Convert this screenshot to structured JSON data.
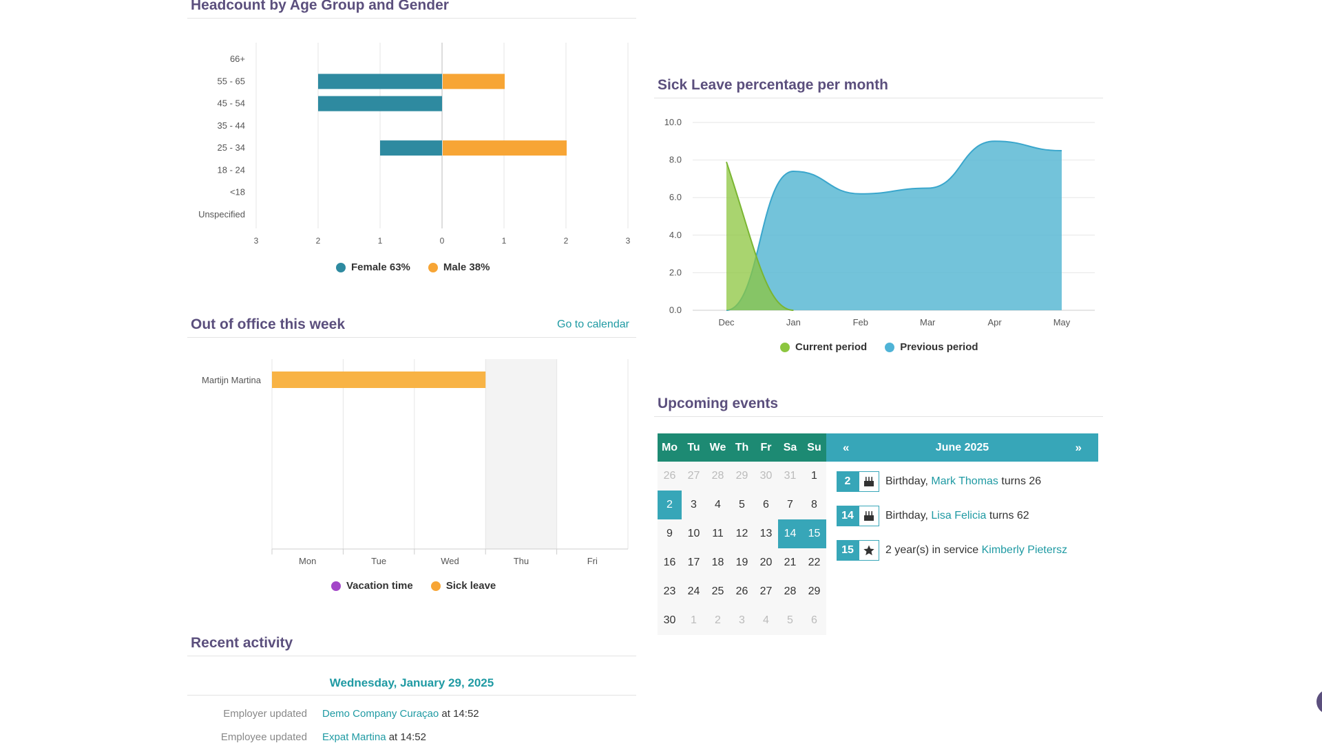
{
  "headcount": {
    "title": "Headcount by Age Group and Gender",
    "legend": {
      "female": "Female 63%",
      "male": "Male 38%"
    },
    "colors": {
      "female": "#2e8aa0",
      "male": "#f7a535"
    }
  },
  "sick_leave": {
    "title": "Sick Leave percentage per month",
    "legend": {
      "current": "Current period",
      "previous": "Previous period"
    },
    "colors": {
      "current": "#8cc63f",
      "previous": "#5bb8d4"
    }
  },
  "out_of_office": {
    "title": "Out of office this week",
    "calendar_link": "Go to calendar",
    "legend": {
      "vacation": "Vacation time",
      "sick": "Sick leave"
    },
    "colors": {
      "vacation": "#a346c8",
      "sick": "#f7a535"
    }
  },
  "events": {
    "title": "Upcoming events",
    "calendar": {
      "month": "June 2025",
      "prev": "«",
      "next": "»",
      "weekdays": [
        "Mo",
        "Tu",
        "We",
        "Th",
        "Fr",
        "Sa",
        "Su"
      ],
      "weeks": [
        [
          "26",
          "27",
          "28",
          "29",
          "30",
          "31",
          "1"
        ],
        [
          "2",
          "3",
          "4",
          "5",
          "6",
          "7",
          "8"
        ],
        [
          "9",
          "10",
          "11",
          "12",
          "13",
          "14",
          "15"
        ],
        [
          "16",
          "17",
          "18",
          "19",
          "20",
          "21",
          "22"
        ],
        [
          "23",
          "24",
          "25",
          "26",
          "27",
          "28",
          "29"
        ],
        [
          "30",
          "1",
          "2",
          "3",
          "4",
          "5",
          "6"
        ]
      ]
    },
    "items": [
      {
        "day": "2",
        "icon": "cake-icon",
        "prefix": "Birthday, ",
        "name": "Mark Thomas",
        "suffix": " turns 26"
      },
      {
        "day": "14",
        "icon": "cake-icon",
        "prefix": "Birthday, ",
        "name": "Lisa Felicia",
        "suffix": " turns 62"
      },
      {
        "day": "15",
        "icon": "star-icon",
        "prefix": "2 year(s) in service ",
        "name": "Kimberly Pietersz",
        "suffix": ""
      }
    ]
  },
  "activity": {
    "title": "Recent activity",
    "date": "Wednesday, January 29, 2025",
    "rows": [
      {
        "label": "Employer updated",
        "link": "Demo Company Curaçao",
        "suffix": " at 14:52"
      },
      {
        "label": "Employee updated",
        "link": "Expat Martina",
        "suffix": " at 14:52"
      }
    ]
  },
  "chart_data": [
    {
      "type": "bar",
      "orientation": "horizontal",
      "title": "Headcount by Age Group and Gender",
      "categories": [
        "66+",
        "55 - 65",
        "45 - 54",
        "35 - 44",
        "25 - 34",
        "18 - 24",
        "<18",
        "Unspecified"
      ],
      "series": [
        {
          "name": "Female 63%",
          "values": [
            0,
            2,
            2,
            0,
            1,
            0,
            0,
            0
          ]
        },
        {
          "name": "Male 38%",
          "values": [
            0,
            1,
            0,
            0,
            2,
            0,
            0,
            0
          ]
        }
      ],
      "xlim": [
        -3,
        3
      ],
      "x_ticks": [
        "3",
        "2",
        "1",
        "0",
        "1",
        "2",
        "3"
      ],
      "grid": true,
      "legend": "bottom"
    },
    {
      "type": "area",
      "title": "Sick Leave percentage per month",
      "categories": [
        "Dec",
        "Jan",
        "Feb",
        "Mar",
        "Apr",
        "May"
      ],
      "series": [
        {
          "name": "Current period",
          "values": [
            7.9,
            0,
            0,
            0,
            0,
            0
          ]
        },
        {
          "name": "Previous period",
          "values": [
            0,
            7.4,
            6.2,
            6.5,
            9.0,
            8.5
          ]
        }
      ],
      "ylim": [
        0,
        10
      ],
      "y_ticks": [
        "0.0",
        "2.0",
        "4.0",
        "6.0",
        "8.0",
        "10.0"
      ],
      "grid": true,
      "legend": "bottom"
    },
    {
      "type": "bar",
      "orientation": "horizontal",
      "title": "Out of office this week",
      "categories": [
        "Martijn Martina"
      ],
      "x_ticks": [
        "Mon",
        "Tue",
        "Wed",
        "Thu",
        "Fri"
      ],
      "series": [
        {
          "name": "Vacation time",
          "spans": []
        },
        {
          "name": "Sick leave",
          "spans": [
            {
              "category": "Martijn Martina",
              "start": "Mon",
              "end": "Thu"
            }
          ]
        }
      ],
      "highlighted_day": "Thu",
      "legend": "bottom"
    }
  ]
}
